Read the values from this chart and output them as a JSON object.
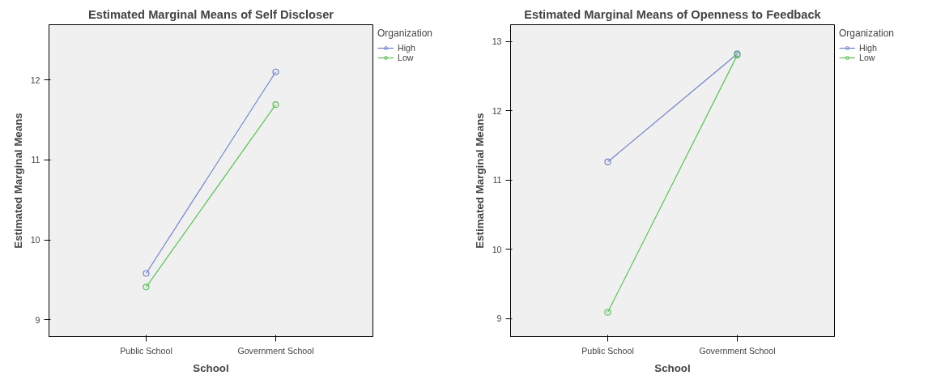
{
  "chart_data": [
    {
      "type": "line",
      "title": "Estimated Marginal Means of Self Discloser",
      "xlabel": "School",
      "ylabel": "Estimated Marginal Means",
      "legend_title": "Organization",
      "categories": [
        "Public School",
        "Government School"
      ],
      "ylim": [
        8.79,
        12.69
      ],
      "yticks": [
        9,
        10,
        11,
        12
      ],
      "grid": false,
      "legend": "right",
      "marker": "circle",
      "line_style": "solid",
      "series": [
        {
          "name": "High",
          "color": "#7382c8",
          "values": [
            9.58,
            12.1
          ]
        },
        {
          "name": "Low",
          "color": "#5cc15c",
          "values": [
            9.41,
            11.69
          ]
        }
      ]
    },
    {
      "type": "line",
      "title": "Estimated Marginal Means of Openness to Feedback",
      "xlabel": "School",
      "ylabel": "Estimated Marginal Means",
      "legend_title": "Organization",
      "categories": [
        "Public School",
        "Government School"
      ],
      "ylim": [
        8.74,
        13.24
      ],
      "yticks": [
        9,
        10,
        11,
        12,
        13
      ],
      "grid": false,
      "legend": "right",
      "marker": "circle",
      "line_style": "solid",
      "series": [
        {
          "name": "High",
          "color": "#7382c8",
          "values": [
            11.26,
            12.82
          ]
        },
        {
          "name": "Low",
          "color": "#5cc15c",
          "values": [
            9.09,
            12.8
          ]
        }
      ]
    }
  ]
}
